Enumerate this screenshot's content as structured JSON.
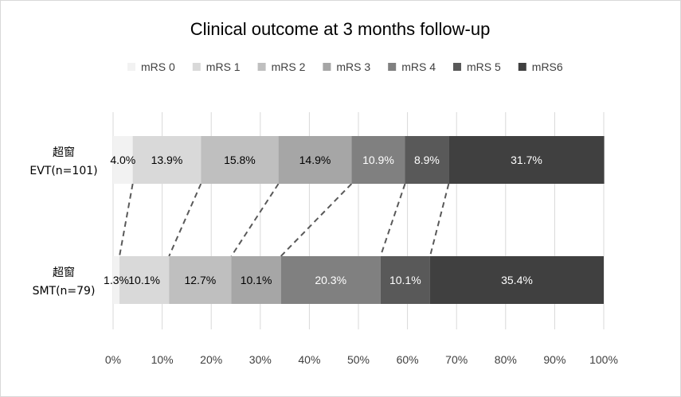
{
  "chart_data": {
    "type": "bar",
    "orientation": "horizontal",
    "stacked": "percent",
    "title": "Clinical outcome at 3 months follow-up",
    "categories": [
      {
        "line1": "超窗",
        "line2": "EVT(n=101)"
      },
      {
        "line1": "超窗",
        "line2": "SMT(n=79)"
      }
    ],
    "series": [
      {
        "name": "mRS 0",
        "color": "#f2f2f2",
        "values": [
          4.0,
          1.3
        ],
        "labels": [
          "4.0%",
          "1.3%"
        ],
        "label_color": "#000000"
      },
      {
        "name": "mRS 1",
        "color": "#d9d9d9",
        "values": [
          13.9,
          10.1
        ],
        "labels": [
          "13.9%",
          "10.1%"
        ],
        "label_color": "#000000"
      },
      {
        "name": "mRS 2",
        "color": "#bfbfbf",
        "values": [
          15.8,
          12.7
        ],
        "labels": [
          "15.8%",
          "12.7%"
        ],
        "label_color": "#000000"
      },
      {
        "name": "mRS 3",
        "color": "#a6a6a6",
        "values": [
          14.9,
          10.1
        ],
        "labels": [
          "14.9%",
          "10.1%"
        ],
        "label_color": "#000000"
      },
      {
        "name": "mRS 4",
        "color": "#808080",
        "values": [
          10.9,
          20.3
        ],
        "labels": [
          "10.9%",
          "20.3%"
        ],
        "label_color": "#ffffff"
      },
      {
        "name": "mRS 5",
        "color": "#595959",
        "values": [
          8.9,
          10.1
        ],
        "labels": [
          "8.9%",
          "10.1%"
        ],
        "label_color": "#ffffff"
      },
      {
        "name": "mRS6",
        "color": "#404040",
        "values": [
          31.7,
          35.4
        ],
        "labels": [
          "31.7%",
          "35.4%"
        ],
        "label_color": "#ffffff"
      }
    ],
    "xaxis": {
      "range": [
        0,
        100
      ],
      "ticks": [
        "0%",
        "10%",
        "20%",
        "30%",
        "40%",
        "50%",
        "60%",
        "70%",
        "80%",
        "90%",
        "100%"
      ]
    },
    "grid": true,
    "legend": "top",
    "connector_lines": "dashed, joining matching boundaries between the two bars"
  }
}
